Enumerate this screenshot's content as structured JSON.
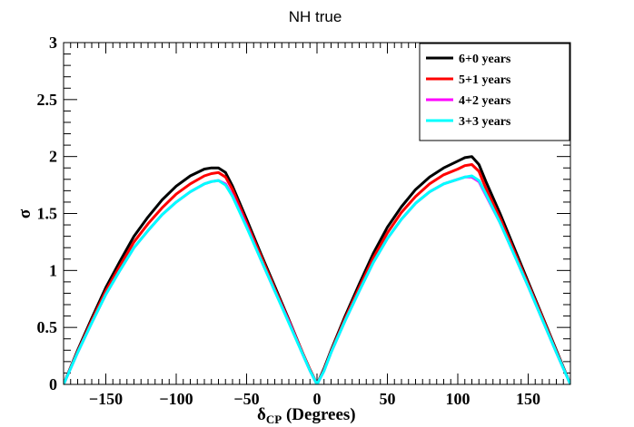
{
  "chart_data": {
    "type": "line",
    "title": "NH true",
    "xlabel": "δCP (Degrees)",
    "xlabel_main": "δ",
    "xlabel_sub": "CP",
    "xlabel_rest": " (Degrees)",
    "ylabel": "σ",
    "xlim": [
      -180,
      180
    ],
    "ylim": [
      0,
      3
    ],
    "xticks": [
      -150,
      -100,
      -50,
      0,
      50,
      100,
      150
    ],
    "xtick_labels": [
      "−150",
      "−100",
      "−50",
      "0",
      "50",
      "100",
      "150"
    ],
    "yticks": [
      0,
      0.5,
      1,
      1.5,
      2,
      2.5,
      3
    ],
    "ytick_labels": [
      "0",
      "0.5",
      "1",
      "1.5",
      "2",
      "2.5",
      "3"
    ],
    "legend_position": "top-right",
    "series": [
      {
        "name": "6+0 years",
        "color": "#000000",
        "x": [
          -180,
          -170,
          -160,
          -150,
          -140,
          -130,
          -120,
          -110,
          -100,
          -90,
          -80,
          -75,
          -70,
          -65,
          -60,
          -50,
          -40,
          -30,
          -20,
          -10,
          -5,
          0,
          5,
          10,
          20,
          30,
          40,
          50,
          60,
          70,
          80,
          90,
          100,
          105,
          110,
          115,
          120,
          130,
          140,
          150,
          160,
          170,
          180
        ],
        "y": [
          0,
          0.3,
          0.58,
          0.85,
          1.08,
          1.3,
          1.47,
          1.62,
          1.74,
          1.83,
          1.89,
          1.9,
          1.9,
          1.86,
          1.74,
          1.45,
          1.15,
          0.86,
          0.57,
          0.27,
          0.13,
          0,
          0.14,
          0.3,
          0.6,
          0.88,
          1.15,
          1.38,
          1.56,
          1.71,
          1.82,
          1.9,
          1.96,
          1.99,
          2.0,
          1.93,
          1.78,
          1.5,
          1.2,
          0.9,
          0.6,
          0.3,
          0
        ]
      },
      {
        "name": "5+1 years",
        "color": "#ff0000",
        "x": [
          -180,
          -170,
          -160,
          -150,
          -140,
          -130,
          -120,
          -110,
          -100,
          -90,
          -80,
          -75,
          -70,
          -65,
          -60,
          -50,
          -40,
          -30,
          -20,
          -10,
          -5,
          0,
          5,
          10,
          20,
          30,
          40,
          50,
          60,
          70,
          80,
          90,
          100,
          105,
          110,
          115,
          120,
          130,
          140,
          150,
          160,
          170,
          180
        ],
        "y": [
          0,
          0.29,
          0.56,
          0.82,
          1.04,
          1.25,
          1.41,
          1.55,
          1.67,
          1.76,
          1.83,
          1.85,
          1.86,
          1.82,
          1.71,
          1.42,
          1.13,
          0.84,
          0.56,
          0.27,
          0.13,
          0,
          0.13,
          0.29,
          0.58,
          0.85,
          1.11,
          1.33,
          1.51,
          1.65,
          1.76,
          1.84,
          1.89,
          1.92,
          1.93,
          1.87,
          1.72,
          1.46,
          1.17,
          0.88,
          0.59,
          0.29,
          0
        ]
      },
      {
        "name": "4+2 years",
        "color": "#ff00ff",
        "x": [
          -180,
          -170,
          -160,
          -150,
          -140,
          -130,
          -120,
          -110,
          -100,
          -90,
          -80,
          -75,
          -70,
          -65,
          -60,
          -50,
          -40,
          -30,
          -20,
          -10,
          -5,
          0,
          5,
          10,
          20,
          30,
          40,
          50,
          60,
          70,
          80,
          90,
          100,
          105,
          110,
          115,
          120,
          130,
          140,
          150,
          160,
          170,
          180
        ],
        "y": [
          0,
          0.28,
          0.54,
          0.79,
          1.0,
          1.2,
          1.35,
          1.49,
          1.6,
          1.69,
          1.76,
          1.78,
          1.79,
          1.76,
          1.66,
          1.39,
          1.1,
          0.82,
          0.55,
          0.26,
          0.12,
          0,
          0.12,
          0.28,
          0.56,
          0.82,
          1.07,
          1.28,
          1.45,
          1.59,
          1.69,
          1.76,
          1.8,
          1.82,
          1.82,
          1.78,
          1.66,
          1.42,
          1.14,
          0.86,
          0.57,
          0.28,
          0
        ]
      },
      {
        "name": "3+3 years",
        "color": "#00ffff",
        "x": [
          -180,
          -170,
          -160,
          -150,
          -140,
          -130,
          -120,
          -110,
          -100,
          -90,
          -80,
          -75,
          -70,
          -65,
          -60,
          -50,
          -40,
          -30,
          -20,
          -10,
          -5,
          0,
          5,
          10,
          20,
          30,
          40,
          50,
          60,
          70,
          80,
          90,
          100,
          105,
          110,
          115,
          120,
          130,
          140,
          150,
          160,
          170,
          180
        ],
        "y": [
          0,
          0.28,
          0.54,
          0.79,
          1.0,
          1.2,
          1.35,
          1.49,
          1.6,
          1.69,
          1.76,
          1.78,
          1.79,
          1.75,
          1.65,
          1.38,
          1.1,
          0.82,
          0.54,
          0.26,
          0.12,
          0,
          0.12,
          0.28,
          0.56,
          0.82,
          1.07,
          1.28,
          1.45,
          1.59,
          1.69,
          1.76,
          1.8,
          1.82,
          1.83,
          1.79,
          1.67,
          1.42,
          1.14,
          0.86,
          0.57,
          0.28,
          0
        ]
      }
    ]
  }
}
